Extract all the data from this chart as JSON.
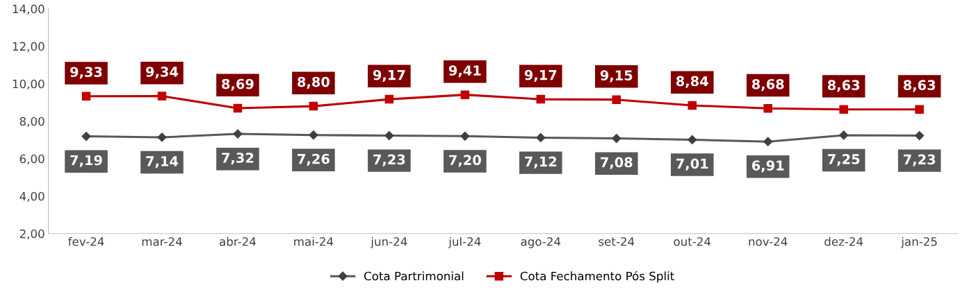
{
  "chart_data": {
    "type": "line",
    "categories": [
      "fev-24",
      "mar-24",
      "abr-24",
      "mai-24",
      "jun-24",
      "jul-24",
      "ago-24",
      "set-24",
      "out-24",
      "nov-24",
      "dez-24",
      "jan-25"
    ],
    "series": [
      {
        "name": "Cota Partrimonial",
        "color": "#595959",
        "marker": "diamond",
        "values": [
          7.19,
          7.14,
          7.32,
          7.26,
          7.23,
          7.2,
          7.12,
          7.08,
          7.01,
          6.91,
          7.25,
          7.23
        ],
        "value_labels": [
          "7,19",
          "7,14",
          "7,32",
          "7,26",
          "7,23",
          "7,20",
          "7,12",
          "7,08",
          "7,01",
          "6,91",
          "7,25",
          "7,23"
        ]
      },
      {
        "name": "Cota Fechamento Pós Split",
        "color": "#c00000",
        "marker": "square",
        "values": [
          9.33,
          9.34,
          8.69,
          8.8,
          9.17,
          9.41,
          9.17,
          9.15,
          8.84,
          8.68,
          8.63,
          8.63
        ],
        "value_labels": [
          "9,33",
          "9,34",
          "8,69",
          "8,80",
          "9,17",
          "9,41",
          "9,17",
          "9,15",
          "8,84",
          "8,68",
          "8,63",
          "8,63"
        ]
      }
    ],
    "ylim": [
      2,
      14
    ],
    "yticks": [
      {
        "value": 2,
        "label": "2,00"
      },
      {
        "value": 4,
        "label": "4,00"
      },
      {
        "value": 6,
        "label": "6,00"
      },
      {
        "value": 8,
        "label": "8,00"
      },
      {
        "value": 10,
        "label": "10,00"
      },
      {
        "value": 12,
        "label": "12,00"
      },
      {
        "value": 14,
        "label": "14,00"
      }
    ],
    "grid": false,
    "legend": "bottom",
    "line_style": "solid"
  }
}
